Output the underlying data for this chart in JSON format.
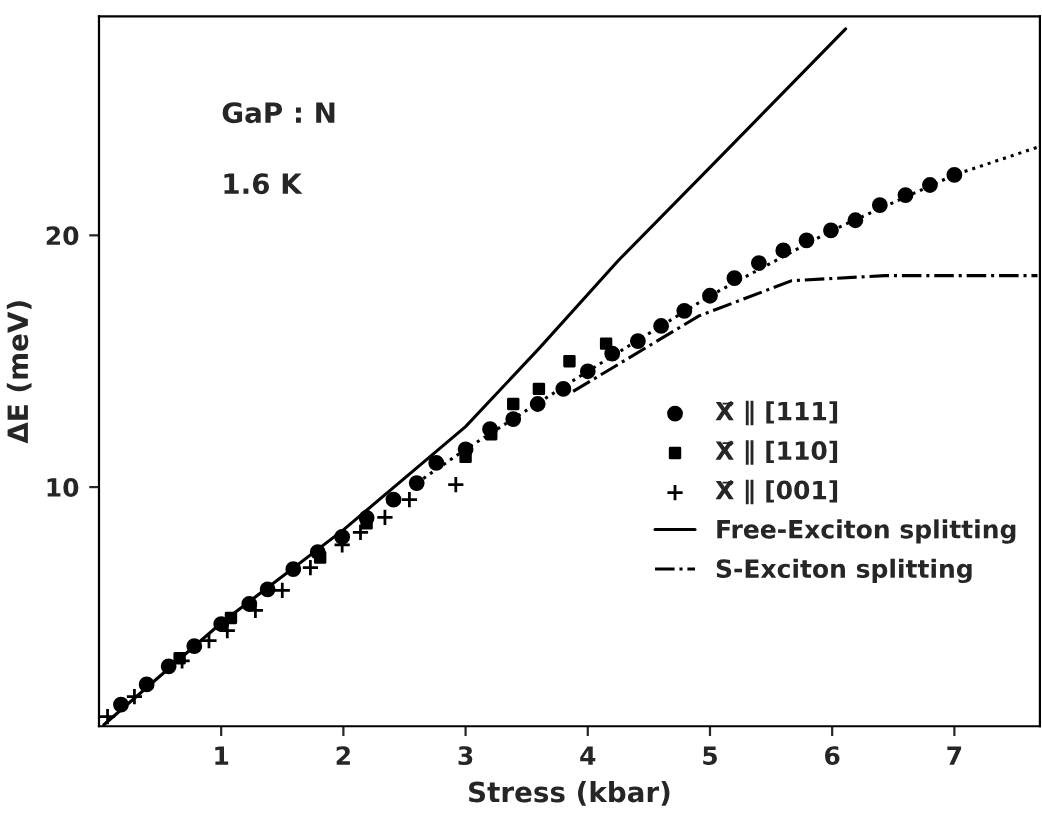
{
  "chart_data": {
    "type": "scatter",
    "xlabel": "Stress (kbar)",
    "ylabel": "ΔE (meV)",
    "xlim": [
      0,
      7.7
    ],
    "ylim": [
      0.5,
      28.7
    ],
    "xticks": [
      1,
      2,
      3,
      4,
      5,
      6,
      7
    ],
    "yticks": [
      10,
      20
    ],
    "grid": false,
    "legend": "right",
    "annotations": [
      {
        "text": "GaP : N"
      },
      {
        "text": "1.6 K"
      }
    ],
    "series": [
      {
        "name": "X⃗ ∥ [111]",
        "marker": "circle",
        "color": "#000000",
        "x": [
          0.18,
          0.39,
          0.57,
          0.78,
          1.0,
          1.23,
          1.38,
          1.59,
          1.79,
          1.99,
          2.19,
          2.41,
          2.6,
          2.76,
          3.0,
          3.2,
          3.39,
          3.59,
          3.8,
          4.0,
          4.2,
          4.41,
          4.6,
          4.79,
          5.0,
          5.2,
          5.4,
          5.6,
          5.79,
          5.99,
          6.19,
          6.39,
          6.6,
          6.8,
          7.0
        ],
        "values": [
          1.36,
          2.16,
          2.88,
          3.68,
          4.56,
          5.36,
          5.94,
          6.74,
          7.42,
          8.02,
          8.78,
          9.5,
          10.16,
          10.96,
          11.5,
          12.3,
          12.7,
          13.3,
          13.9,
          14.6,
          15.3,
          15.8,
          16.4,
          17.0,
          17.6,
          18.3,
          18.9,
          19.4,
          19.8,
          20.2,
          20.6,
          21.2,
          21.6,
          22.0,
          22.4
        ]
      },
      {
        "name": "X⃗ ∥ [110]",
        "marker": "square",
        "color": "#000000",
        "x": [
          0.66,
          1.08,
          1.81,
          2.19,
          3.0,
          3.21,
          3.39,
          3.6,
          3.85,
          4.15
        ],
        "values": [
          3.2,
          4.8,
          7.2,
          8.56,
          11.2,
          12.1,
          13.3,
          13.9,
          15.0,
          15.7
        ]
      },
      {
        "name": "X⃗ ∥ [001]",
        "marker": "cross",
        "color": "#000000",
        "x": [
          0.07,
          0.29,
          0.68,
          0.9,
          1.05,
          1.28,
          1.5,
          1.73,
          1.99,
          2.14,
          2.34,
          2.54,
          2.92
        ],
        "values": [
          0.88,
          1.68,
          3.1,
          3.9,
          4.3,
          5.1,
          5.9,
          6.8,
          7.7,
          8.2,
          8.8,
          9.5,
          10.1
        ]
      },
      {
        "name": "Free-Exciton splitting",
        "type": "line",
        "marker": "none",
        "line_style": "solid",
        "color": "#000000",
        "x": [
          0.04,
          1,
          2,
          3,
          3.6,
          4.25,
          4.98,
          6.11
        ],
        "values": [
          0.56,
          4.6,
          8.3,
          12.4,
          15.5,
          19.0,
          22.6,
          28.2
        ]
      },
      {
        "name": "S-Exciton splitting",
        "type": "line",
        "marker": "none",
        "line_style": "dashdot",
        "color": "#000000",
        "x": [
          3.88,
          4.91,
          5.67,
          6.43,
          7.68
        ],
        "values": [
          13.8,
          16.8,
          18.2,
          18.4,
          18.4
        ]
      },
      {
        "type": "line",
        "marker": "none",
        "line_style": "dotted",
        "color": "#000000",
        "x": [
          2.6,
          3.0,
          4.0,
          5.0,
          6.0,
          7.0,
          7.68
        ],
        "values": [
          10.16,
          11.5,
          14.6,
          17.6,
          20.2,
          22.4,
          23.5
        ]
      }
    ]
  }
}
